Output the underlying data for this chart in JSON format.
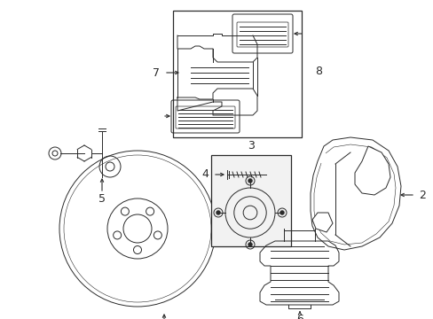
{
  "bg_color": "#ffffff",
  "line_color": "#2a2a2a",
  "fig_width": 4.89,
  "fig_height": 3.6,
  "dpi": 100,
  "xlim": [
    0,
    489
  ],
  "ylim": [
    0,
    360
  ]
}
